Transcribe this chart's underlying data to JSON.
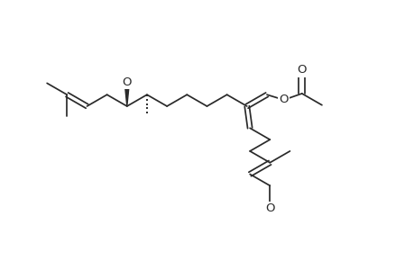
{
  "bg": "#ffffff",
  "lc": "#2a2a2a",
  "lw": 1.25,
  "fs": 9.5,
  "bl": 0.6,
  "ang": 30,
  "xlim": [
    0,
    10
  ],
  "ylim": [
    0,
    7
  ]
}
